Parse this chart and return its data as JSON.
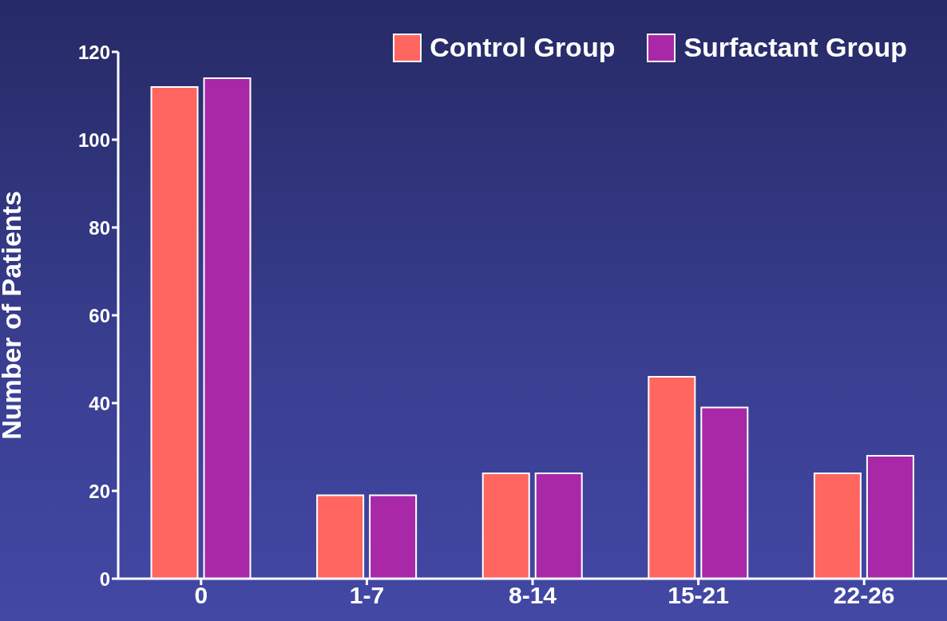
{
  "chart_data": {
    "type": "bar",
    "ylabel": "Number of Patients",
    "categories": [
      "0",
      "1-7",
      "8-14",
      "15-21",
      "22-26"
    ],
    "series": [
      {
        "name": "Control Group",
        "color": "#ff6660",
        "values": [
          112,
          19,
          24,
          46,
          24
        ]
      },
      {
        "name": "Surfactant Group",
        "color": "#a828a8",
        "values": [
          114,
          19,
          24,
          39,
          28
        ]
      }
    ],
    "ylim": [
      0,
      120
    ],
    "yticks": [
      0,
      20,
      40,
      60,
      80,
      100,
      120
    ],
    "grid": false,
    "legend": "top right"
  }
}
